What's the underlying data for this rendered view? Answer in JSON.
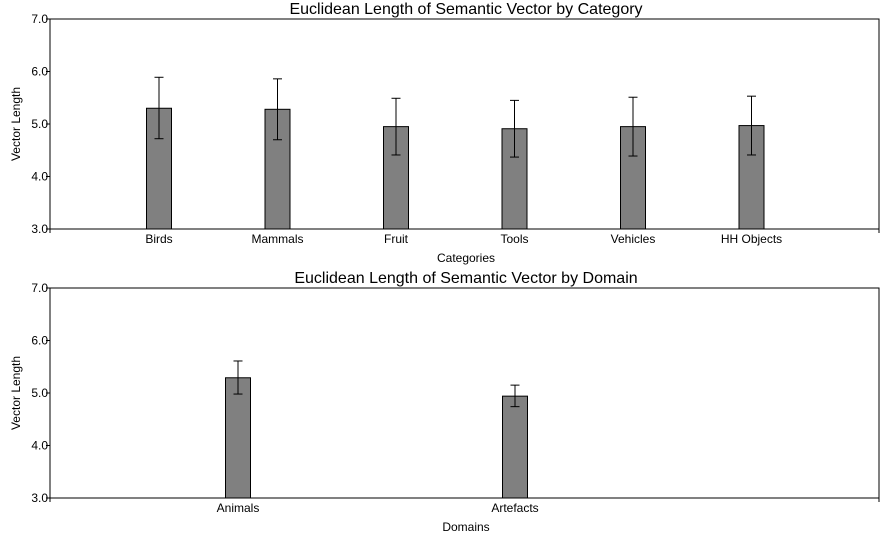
{
  "chart_data": [
    {
      "type": "bar",
      "title": "Euclidean Length of Semantic Vector by Category",
      "xlabel": "Categories",
      "ylabel": "Vector Length",
      "ylim": [
        3.0,
        7.0
      ],
      "yticks": [
        "3.0",
        "4.0",
        "5.0",
        "6.0",
        "7.0"
      ],
      "categories": [
        "Birds",
        "Mammals",
        "Fruit",
        "Tools",
        "Vehicles",
        "HH Objects"
      ],
      "values": [
        5.3,
        5.28,
        4.95,
        4.91,
        4.95,
        4.97
      ],
      "error_low": [
        4.72,
        4.7,
        4.41,
        4.37,
        4.39,
        4.41
      ],
      "error_high": [
        5.89,
        5.86,
        5.49,
        5.45,
        5.51,
        5.53
      ],
      "bar_color": "#808080",
      "grid": false
    },
    {
      "type": "bar",
      "title": "Euclidean Length of Semantic Vector by Domain",
      "xlabel": "Domains",
      "ylabel": "Vector Length",
      "ylim": [
        3.0,
        7.0
      ],
      "yticks": [
        "3.0",
        "4.0",
        "5.0",
        "6.0",
        "7.0"
      ],
      "categories": [
        "Animals",
        "Artefacts"
      ],
      "values": [
        5.29,
        4.94
      ],
      "error_low": [
        4.98,
        4.74
      ],
      "error_high": [
        5.61,
        5.15
      ],
      "bar_color": "#808080",
      "grid": false
    }
  ]
}
